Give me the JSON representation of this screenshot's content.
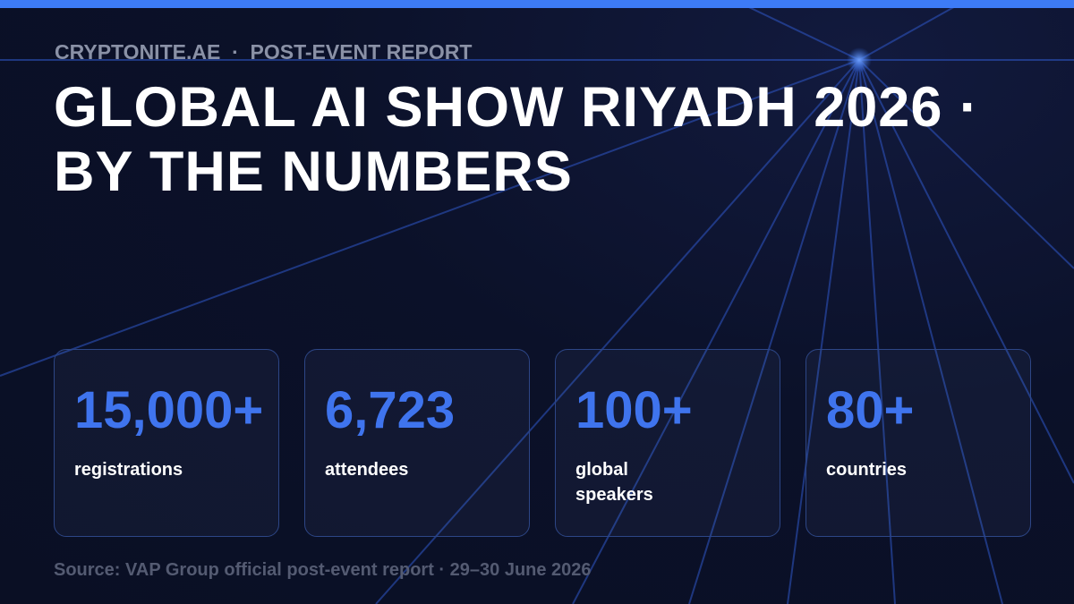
{
  "header": {
    "eyebrow": "CRYPTONITE.AE  ·  POST-EVENT REPORT",
    "title": "GLOBAL AI SHOW RIYADH 2026 · BY THE NUMBERS"
  },
  "stats": [
    {
      "value": "15,000+",
      "label": "registrations"
    },
    {
      "value": "6,723",
      "label": "attendees"
    },
    {
      "value": "100+",
      "label": "global speakers"
    },
    {
      "value": "80+",
      "label": "countries"
    }
  ],
  "footer": {
    "source": "Source: VAP Group official post-event report · 29–30 June 2026"
  }
}
